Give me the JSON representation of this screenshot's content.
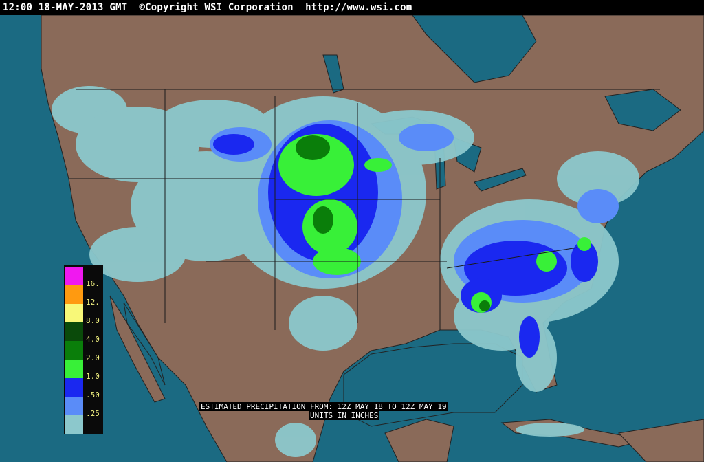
{
  "header": {
    "text": "12:00 18-MAY-2013 GMT  ©Copyright WSI Corporation  http://www.wsi.com"
  },
  "colors": {
    "ocean": "#1b6a82",
    "land": "#8a6a59",
    "border": "#1a1a1a"
  },
  "legend": [
    {
      "label": "16.",
      "color": "#f018f0"
    },
    {
      "label": "12.",
      "color": "#ff9a10"
    },
    {
      "label": "8.0",
      "color": "#f8f878"
    },
    {
      "label": "4.0",
      "color": "#0a4a0a"
    },
    {
      "label": "2.0",
      "color": "#0a7e0a"
    },
    {
      "label": "1.0",
      "color": "#38f038"
    },
    {
      "label": ".50",
      "color": "#1a28f0"
    },
    {
      "label": ".25",
      "color": "#5a8cf8"
    },
    {
      "label": "",
      "color": "#8cc8cc"
    }
  ],
  "caption": {
    "line1": "ESTIMATED PRECIPITATION FROM: 12Z MAY 18 TO 12Z MAY 19",
    "line2": "UNITS IN INCHES"
  }
}
